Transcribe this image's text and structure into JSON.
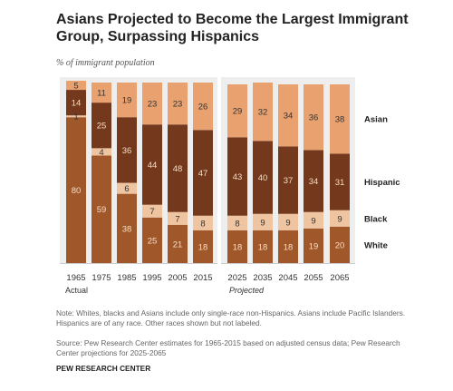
{
  "title": "Asians Projected to Become the Largest Immigrant Group, Surpassing Hispanics",
  "subtitle": "% of immigrant population",
  "note": "Note: Whites, blacks and Asians include only single-race non-Hispanics. Asians include Pacific Islanders. Hispanics are of any race. Other races shown but not labeled.",
  "source": "Source: Pew Research Center estimates for 1965-2015 based on adjusted census data; Pew Research Center projections for 2025-2065",
  "org": "PEW RESEARCH CENTER",
  "chart_data": {
    "type": "bar",
    "stacked": true,
    "categories": [
      "1965",
      "1975",
      "1985",
      "1995",
      "2005",
      "2015",
      "2025",
      "2035",
      "2045",
      "2055",
      "2065"
    ],
    "groups": [
      {
        "label": "Actual",
        "categories": [
          "1965",
          "1975",
          "1985",
          "1995",
          "2005",
          "2015"
        ]
      },
      {
        "label": "Projected",
        "categories": [
          "2025",
          "2035",
          "2045",
          "2055",
          "2065"
        ]
      }
    ],
    "series": [
      {
        "name": "White",
        "color": "#a0582a",
        "label_color": "#f7dcc4",
        "values": [
          80,
          59,
          38,
          25,
          21,
          18,
          18,
          18,
          18,
          19,
          20
        ]
      },
      {
        "name": "Black",
        "color": "#efc4a0",
        "label_color": "#333333",
        "values": [
          1,
          4,
          6,
          7,
          7,
          8,
          8,
          9,
          9,
          9,
          9
        ]
      },
      {
        "name": "Hispanic",
        "color": "#74381c",
        "label_color": "#f7dcc4",
        "values": [
          14,
          25,
          36,
          44,
          48,
          47,
          43,
          40,
          37,
          34,
          31
        ]
      },
      {
        "name": "Asian",
        "color": "#e8a16f",
        "label_color": "#333333",
        "values": [
          5,
          11,
          19,
          23,
          23,
          26,
          29,
          32,
          34,
          36,
          38
        ]
      }
    ],
    "legend_labels": [
      "White",
      "Black",
      "Hispanic",
      "Asian"
    ],
    "ylim": [
      0,
      100
    ],
    "grid": false,
    "background_color": "#eeeeee",
    "axis_color": "#cccccc"
  }
}
